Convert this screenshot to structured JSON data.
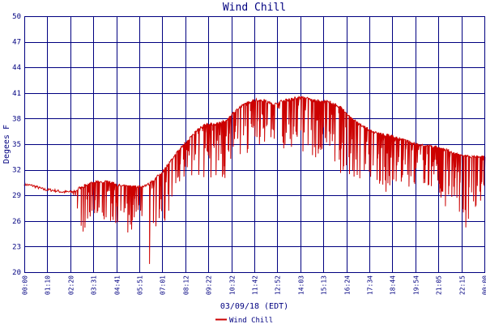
{
  "chart_data": {
    "type": "line",
    "title": "Wind Chill",
    "xlabel": "03/09/18 (EDT)",
    "ylabel": "Degees F",
    "ylim": [
      20,
      50
    ],
    "yticks": [
      20,
      23,
      26,
      29,
      32,
      35,
      38,
      41,
      44,
      47,
      50
    ],
    "xlim": [
      "00:00",
      "00:00"
    ],
    "x_tick_labels": [
      "00:00",
      "01:10",
      "02:20",
      "03:31",
      "04:41",
      "05:51",
      "07:01",
      "08:12",
      "09:22",
      "10:32",
      "11:42",
      "12:52",
      "14:03",
      "15:13",
      "16:24",
      "17:34",
      "18:44",
      "19:54",
      "21:05",
      "22:15",
      "00:00"
    ],
    "grid": true,
    "legend_position": "bottom-center",
    "colors": {
      "series": "#cc0000",
      "grid": "#000080",
      "axes": "#000080",
      "text": "#000080"
    },
    "series": [
      {
        "name": "Wind Chill",
        "x_minutes": [
          0,
          30,
          60,
          90,
          120,
          150,
          180,
          210,
          240,
          270,
          300,
          330,
          360,
          390,
          420,
          450,
          480,
          510,
          540,
          570,
          600,
          630,
          660,
          690,
          720,
          750,
          780,
          810,
          840,
          870,
          900,
          930,
          960,
          990,
          1020,
          1050,
          1080,
          1110,
          1140,
          1170,
          1200,
          1230,
          1260,
          1290,
          1320,
          1350,
          1380,
          1410,
          1440
        ],
        "upper_envelope": [
          30.3,
          30.1,
          29.7,
          29.6,
          29.4,
          29.4,
          30.0,
          30.4,
          30.6,
          30.5,
          30.1,
          30.0,
          30.0,
          30.3,
          31.3,
          32.6,
          34.1,
          35.4,
          36.6,
          37.3,
          37.3,
          37.7,
          38.9,
          39.7,
          40.2,
          40.1,
          39.6,
          40.1,
          40.3,
          40.5,
          40.2,
          40.0,
          39.9,
          39.3,
          38.2,
          37.3,
          36.7,
          36.2,
          36.0,
          35.7,
          35.3,
          35.0,
          34.8,
          34.6,
          34.3,
          33.8,
          33.6,
          33.5,
          33.5
        ],
        "lower_envelope": [
          30.3,
          30.1,
          29.7,
          29.6,
          29.4,
          29.4,
          24.0,
          26.5,
          25.0,
          26.0,
          25.5,
          24.0,
          27.0,
          20.3,
          25.0,
          26.5,
          29.5,
          30.0,
          29.0,
          30.0,
          30.5,
          31.0,
          34.0,
          33.5,
          34.5,
          35.0,
          35.0,
          33.0,
          34.5,
          33.5,
          33.0,
          34.0,
          33.5,
          31.5,
          31.0,
          30.0,
          31.0,
          30.0,
          29.0,
          30.5,
          30.0,
          29.5,
          30.0,
          29.0,
          27.5,
          28.5,
          24.0,
          27.5,
          28.5
        ]
      }
    ]
  }
}
